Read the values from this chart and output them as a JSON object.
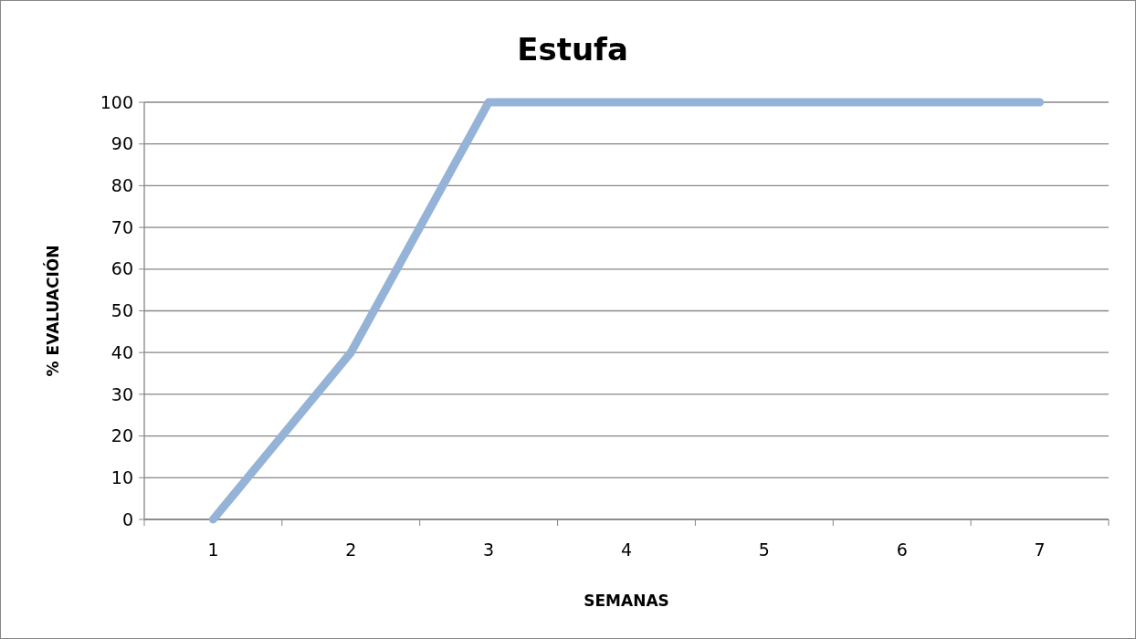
{
  "chart_data": {
    "type": "line",
    "title": "Estufa",
    "xlabel": "SEMANAS",
    "ylabel": "% EVALUACIÓN",
    "categories": [
      "1",
      "2",
      "3",
      "4",
      "5",
      "6",
      "7"
    ],
    "series": [
      {
        "color": "#95b3d7",
        "values": [
          0,
          40,
          100,
          100,
          100,
          100,
          100
        ]
      }
    ],
    "ylim": [
      0,
      100
    ],
    "yticks": [
      0,
      10,
      20,
      30,
      40,
      50,
      60,
      70,
      80,
      90,
      100
    ],
    "grid": "y",
    "marker": "none",
    "line_style": "solid"
  }
}
